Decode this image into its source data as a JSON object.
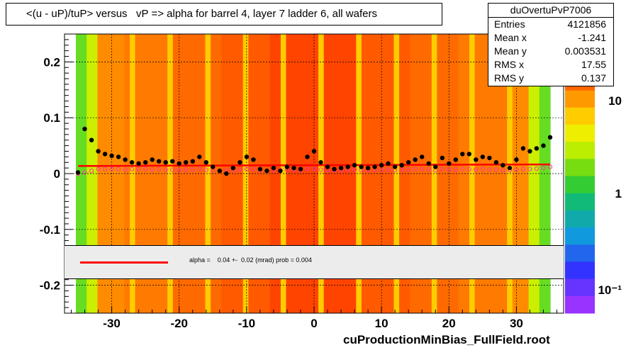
{
  "title": "<(u - uP)/tuP> versus   vP => alpha for barrel 4, layer 7 ladder 6, all wafers",
  "stats": {
    "name": "duOvertuPvP7006",
    "rows": [
      {
        "label": "Entries",
        "value": "4121856"
      },
      {
        "label": "Mean x",
        "value": "-1.241"
      },
      {
        "label": "Mean y",
        "value": "0.003531"
      },
      {
        "label": "RMS x",
        "value": "17.55"
      },
      {
        "label": "RMS y",
        "value": "0.137"
      }
    ]
  },
  "legend": {
    "text": "alpha =    0.04 +-  0.02 (mrad) prob = 0.004",
    "line_color": "#ff0000"
  },
  "footer": "cuProductionMinBias_FullField.root",
  "colors": {
    "fit_line": "#ff0000",
    "profile_black": "#000000",
    "profile_magenta": "#ff33aa"
  },
  "chart_data": {
    "type": "heatmap",
    "title": "<(u - uP)/tuP> versus   vP => alpha for barrel 4, layer 7 ladder 6, all wafers",
    "xlabel": "",
    "ylabel": "",
    "xlim": [
      -37,
      37
    ],
    "ylim": [
      -0.25,
      0.25
    ],
    "x_ticks": [
      -30,
      -20,
      -10,
      0,
      10,
      20,
      30
    ],
    "x_tick_labels": [
      "-30",
      "-20",
      "-10",
      "0",
      "10",
      "20",
      "30"
    ],
    "y_ticks": [
      0.2,
      0.1,
      0,
      -0.1,
      -0.2
    ],
    "y_tick_labels": [
      "0.2",
      "0.1",
      "0",
      "-0.1",
      "-0.2"
    ],
    "colorbar_labels": [
      "10",
      "1",
      "10⁻¹"
    ],
    "colorbar_log_scale": true,
    "grid": true,
    "fit_line": {
      "slope": 4e-05,
      "intercept": 0.015,
      "x_range": [
        -35,
        35
      ]
    },
    "profile_black": {
      "x": [
        -35,
        -34,
        -33,
        -32,
        -31,
        -30,
        -29,
        -28,
        -27,
        -26,
        -25,
        -24,
        -23,
        -22,
        -21,
        -20,
        -19,
        -18,
        -17,
        -16,
        -15,
        -14,
        -13,
        -12,
        -11,
        -10,
        -9,
        -8,
        -7,
        -6,
        -5,
        -4,
        -3,
        -2,
        -1,
        0,
        1,
        2,
        3,
        4,
        5,
        6,
        7,
        8,
        9,
        10,
        11,
        12,
        13,
        14,
        15,
        16,
        17,
        18,
        19,
        20,
        21,
        22,
        23,
        24,
        25,
        26,
        27,
        28,
        29,
        30,
        31,
        32,
        33,
        34,
        35
      ],
      "y": [
        0.002,
        0.08,
        0.06,
        0.04,
        0.035,
        0.032,
        0.03,
        0.025,
        0.02,
        0.018,
        0.02,
        0.025,
        0.022,
        0.02,
        0.022,
        0.018,
        0.02,
        0.022,
        0.03,
        0.02,
        0.012,
        0.005,
        0.0,
        0.01,
        0.02,
        0.03,
        0.025,
        0.008,
        0.005,
        0.01,
        0.005,
        0.012,
        0.01,
        0.008,
        0.03,
        0.04,
        0.02,
        0.012,
        0.008,
        0.01,
        0.012,
        0.015,
        0.012,
        0.01,
        0.012,
        0.015,
        0.018,
        0.012,
        0.015,
        0.02,
        0.025,
        0.03,
        0.018,
        0.012,
        0.028,
        0.018,
        0.025,
        0.035,
        0.035,
        0.025,
        0.03,
        0.028,
        0.02,
        0.015,
        0.01,
        0.025,
        0.045,
        0.04,
        0.045,
        0.05,
        0.065
      ]
    },
    "profile_magenta": {
      "x": [
        -35,
        -34,
        -33,
        -32,
        -31,
        -30,
        -29,
        -28,
        -27,
        -26,
        -25,
        -24,
        -23,
        -22,
        -21,
        -20,
        -19,
        -18,
        -17,
        -16,
        -15,
        -14,
        -13,
        -12,
        -11,
        -10,
        -9,
        -8,
        -7,
        -6,
        -5,
        -4,
        -3,
        -2,
        -1,
        0,
        1,
        2,
        3,
        4,
        5,
        6,
        7,
        8,
        9,
        10,
        11,
        12,
        13,
        14,
        15,
        16,
        17,
        18,
        19,
        20,
        21,
        22,
        23,
        24,
        25,
        26,
        27,
        28,
        29,
        30,
        31,
        32,
        33,
        34,
        35
      ],
      "y": [
        0.0,
        0.002,
        0.005,
        0.008,
        0.008,
        0.008,
        0.008,
        0.007,
        0.008,
        0.008,
        0.008,
        0.007,
        0.008,
        0.007,
        0.007,
        0.006,
        0.007,
        0.007,
        0.008,
        0.007,
        0.006,
        0.005,
        0.005,
        0.006,
        0.007,
        0.008,
        0.008,
        0.006,
        0.005,
        0.006,
        0.006,
        0.007,
        0.007,
        0.006,
        0.008,
        0.008,
        0.007,
        0.006,
        0.006,
        0.006,
        0.007,
        0.007,
        0.006,
        0.006,
        0.006,
        0.007,
        0.007,
        0.006,
        0.007,
        0.007,
        0.008,
        0.008,
        0.007,
        0.006,
        0.008,
        0.007,
        0.007,
        0.008,
        0.008,
        0.007,
        0.008,
        0.007,
        0.007,
        0.006,
        0.006,
        0.007,
        0.008,
        0.008,
        0.009,
        0.01,
        0.012
      ]
    }
  }
}
